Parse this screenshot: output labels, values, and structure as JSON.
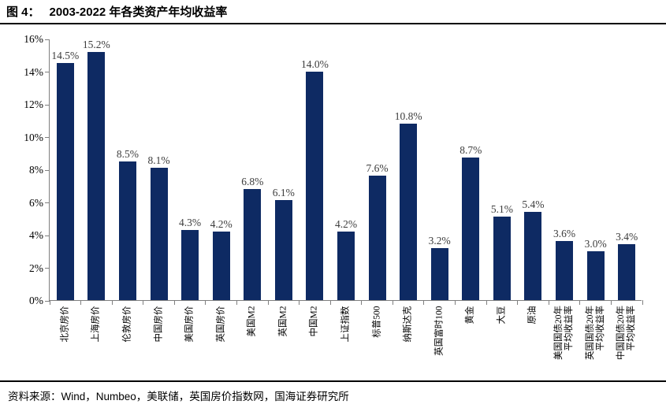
{
  "title": {
    "prefix": "图 4：",
    "text": "2003-2022 年各类资产年均收益率"
  },
  "source": {
    "text": "资料来源：Wind，Numbeo，美联储，英国房价指数网，国海证券研究所"
  },
  "colors": {
    "bar": "#0e2a63",
    "axis": "#7f7f7f",
    "value_label": "#3d3d3d",
    "rule": "#000000"
  },
  "chart_data": {
    "type": "bar",
    "title": "图 4：2003-2022 年各类资产年均收益率",
    "categories": [
      "北京房价",
      "上海房价",
      "伦敦房价",
      "中国房价",
      "美国房价",
      "英国房价",
      "美国M2",
      "英国M2",
      "中国M2",
      "上证指数",
      "标普500",
      "纳斯达克",
      "英国富时100",
      "黄金",
      "大豆",
      "原油",
      "美国国债20年\n平均收益率",
      "英国国债20年\n平均收益率",
      "中国国债20年\n平均收益率"
    ],
    "values": [
      14.5,
      15.2,
      8.5,
      8.1,
      4.3,
      4.2,
      6.8,
      6.1,
      14.0,
      4.2,
      7.6,
      10.8,
      3.2,
      8.7,
      5.1,
      5.4,
      3.6,
      3.0,
      3.4
    ],
    "data_labels": [
      "14.5%",
      "15.2%",
      "8.5%",
      "8.1%",
      "4.3%",
      "4.2%",
      "6.8%",
      "6.1%",
      "14.0%",
      "4.2%",
      "7.6%",
      "10.8%",
      "3.2%",
      "8.7%",
      "5.1%",
      "5.4%",
      "3.6%",
      "3.0%",
      "3.4%"
    ],
    "xlabel": "",
    "ylabel": "",
    "ylim": [
      0,
      16
    ],
    "ytick_step": 2,
    "ytick_suffix": "%",
    "ytick_labels": [
      "0%",
      "2%",
      "4%",
      "6%",
      "8%",
      "10%",
      "12%",
      "14%",
      "16%"
    ],
    "grid": false,
    "legend": false,
    "bar_color": "#0e2a63"
  }
}
